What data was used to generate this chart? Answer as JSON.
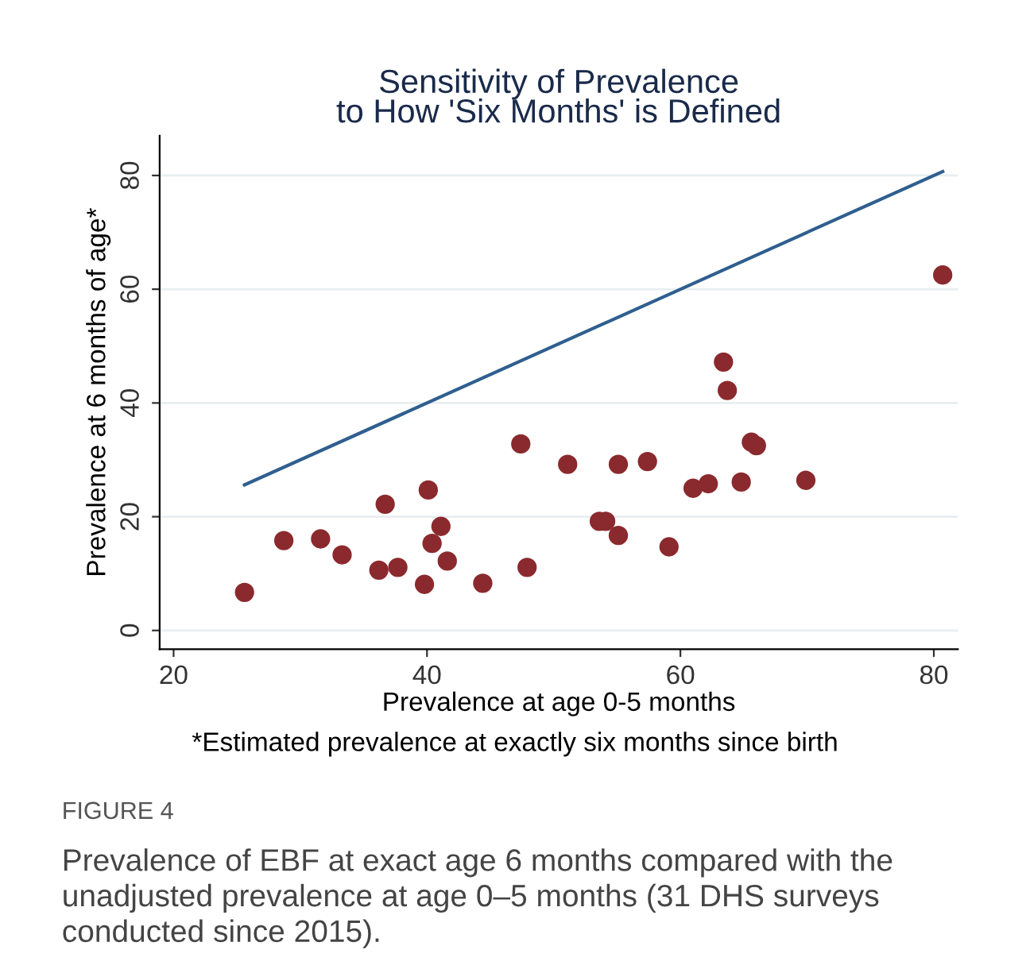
{
  "chart_data": {
    "type": "scatter",
    "title": "Sensitivity of Prevalence\nto How 'Six Months' is Defined",
    "xlabel": "Prevalence at age 0-5 months",
    "ylabel": "Prevalence at 6 months of age*",
    "annotations": [
      "*Estimated prevalence at exactly six months since birth",
      "FIGURE 4",
      "Prevalence of EBF at exact age 6 months compared with the unadjusted prevalence at age 0–5 months (31 DHS surveys conducted since 2015)."
    ],
    "series": [
      {
        "color": "#8b2a2e",
        "marker": "circle",
        "x": [
          25.6,
          28.7,
          31.6,
          33.3,
          36.7,
          36.2,
          37.7,
          39.8,
          40.1,
          40.4,
          41.1,
          41.6,
          44.4,
          47.4,
          47.9,
          51.1,
          53.6,
          54.1,
          55.1,
          55.1,
          57.4,
          59.1,
          61.0,
          62.2,
          63.4,
          63.7,
          64.8,
          65.6,
          66.0,
          69.9,
          80.7
        ],
        "values": [
          6.7,
          15.8,
          16.1,
          13.3,
          22.2,
          10.6,
          11.1,
          8.1,
          24.7,
          15.3,
          18.3,
          12.2,
          8.3,
          32.8,
          11.1,
          29.2,
          19.2,
          19.2,
          29.2,
          16.7,
          29.7,
          14.7,
          25.0,
          25.8,
          47.2,
          42.2,
          26.1,
          33.1,
          32.5,
          26.4,
          62.5
        ]
      },
      {
        "type": "line",
        "color": "#2f5f8f",
        "marker": "none",
        "line_style": "solid",
        "x": [
          25.6,
          80.7
        ],
        "values": [
          25.6,
          80.7
        ]
      }
    ],
    "xlim": [
      18.9,
      81.9
    ],
    "ylim": [
      -3.3,
      87
    ],
    "xticks": [
      20,
      40,
      60,
      80
    ],
    "yticks": [
      0,
      20,
      40,
      60,
      80
    ],
    "grid": "y",
    "legend": false
  }
}
